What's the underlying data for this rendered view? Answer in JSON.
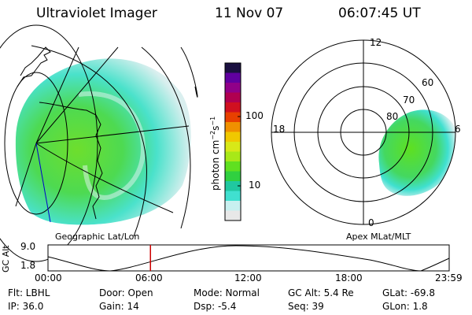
{
  "header": {
    "instrument": "Ultraviolet Imager",
    "date": "11 Nov 07",
    "time": "06:07:45 UT"
  },
  "map": {
    "caption": "Geographic Lat/Lon"
  },
  "polar": {
    "caption": "Apex MLat/MLT",
    "mlt_labels": {
      "top": "12",
      "left": "18",
      "right": "6",
      "bottom": "0"
    },
    "lat_labels": [
      "60",
      "70",
      "80"
    ]
  },
  "colorbar": {
    "ylabel_main": "photon cm",
    "ylabel_exp1": "−2",
    "ylabel_s": "s",
    "ylabel_exp2": "−1",
    "ticks": [
      "100",
      "10"
    ],
    "colors": [
      "#e8e8e8",
      "#c8f0f0",
      "#40e0d0",
      "#20c8a0",
      "#30d040",
      "#60e020",
      "#a8e818",
      "#d8e818",
      "#f0c800",
      "#f09000",
      "#e84000",
      "#d01020",
      "#b00050",
      "#900088",
      "#6000a0",
      "#1a1040"
    ]
  },
  "altitude_plot": {
    "ylabel": "GC Alt",
    "ytick_top": "9.0",
    "ytick_bottom": "1.8",
    "xticks": [
      "00:00",
      "06:00",
      "12:00",
      "18:00",
      "23:59"
    ],
    "current_marker_fraction": 0.2554
  },
  "footer": {
    "flt": "Flt: LBHL",
    "door": "Door: Open",
    "mode": "Mode: Normal",
    "gc_alt": "GC Alt: 5.4 Re",
    "glat": "GLat: -69.8",
    "ip": "IP: 36.0",
    "gain": "Gain: 14",
    "dsp": "Dsp:    -5.4",
    "seq": "Seq: 39",
    "glon": "GLon:   1.8"
  }
}
